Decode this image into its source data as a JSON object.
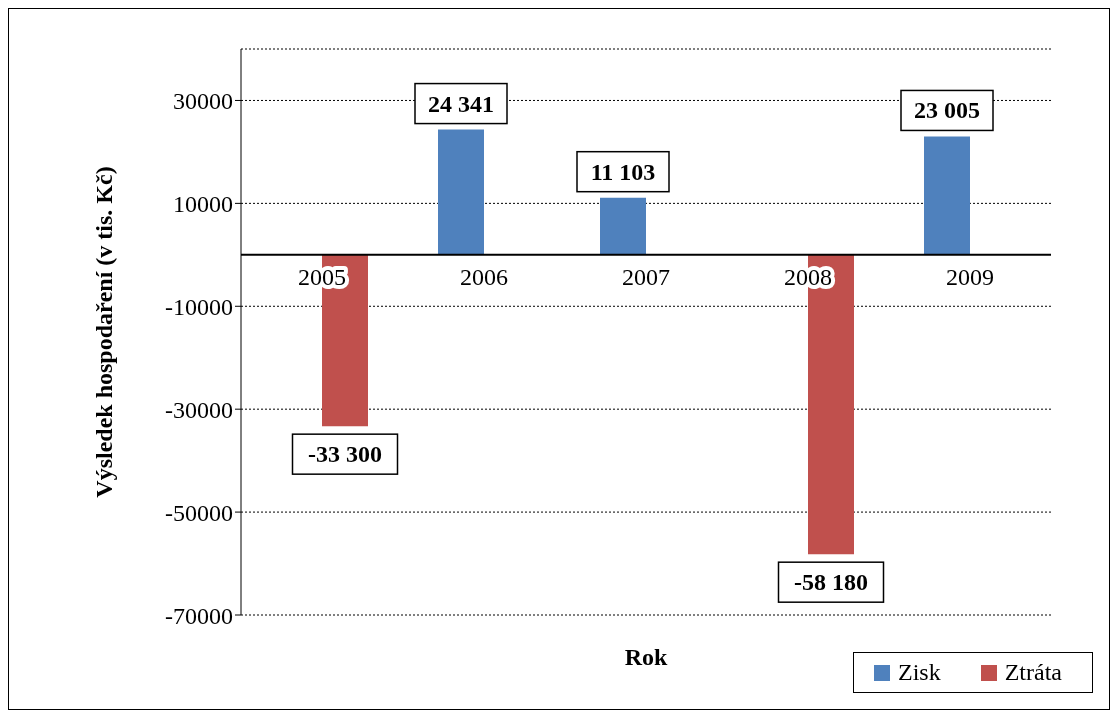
{
  "chart_data": {
    "type": "bar",
    "xlabel": "Rok",
    "ylabel": "Výsledek hospodaření (v tis. Kč)",
    "categories": [
      "2005",
      "2006",
      "2007",
      "2008",
      "2009"
    ],
    "series": [
      {
        "name": "Zisk",
        "color": "#4f81bd",
        "values": [
          null,
          24341,
          11103,
          null,
          23005
        ],
        "value_labels": [
          null,
          "24 341",
          "11 103",
          null,
          "23 005"
        ]
      },
      {
        "name": "Ztráta",
        "color": "#c0504d",
        "values": [
          -33300,
          null,
          null,
          -58180,
          null
        ],
        "value_labels": [
          "-33 300",
          null,
          null,
          "-58 180",
          null
        ]
      }
    ],
    "ylim": [
      -70000,
      40000
    ],
    "yticks": [
      -70000,
      -50000,
      -30000,
      -10000,
      10000,
      30000
    ],
    "grid": "y",
    "legend": "bottom right"
  }
}
